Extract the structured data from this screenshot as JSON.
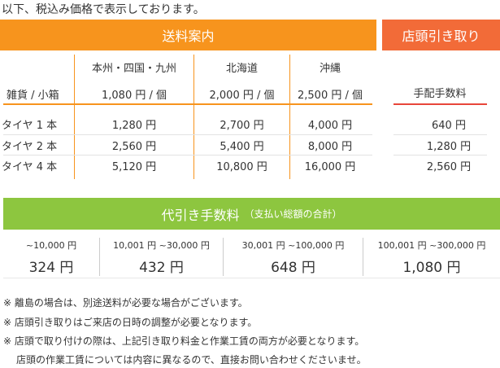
{
  "intro": "以下、税込み価格で表示しております。",
  "shipping": {
    "title": "送料案内",
    "columns": [
      "本州・四国・九州",
      "北海道",
      "沖縄"
    ],
    "rows": [
      {
        "label": "雑貨 / 小箱",
        "values": [
          "1,080 円 / 個",
          "2,000 円 / 個",
          "2,500 円 / 個"
        ]
      },
      {
        "label": "タイヤ 1 本",
        "values": [
          "1,280 円",
          "2,700 円",
          "4,000 円"
        ]
      },
      {
        "label": "タイヤ 2 本",
        "values": [
          "2,560 円",
          "5,400 円",
          "8,000 円"
        ]
      },
      {
        "label": "タイヤ 4 本",
        "values": [
          "5,120 円",
          "10,800 円",
          "16,000 円"
        ]
      }
    ]
  },
  "pickup": {
    "title": "店頭引き取り",
    "column": "手配手数料",
    "values": [
      "640 円",
      "1,280 円",
      "2,560 円"
    ]
  },
  "cod": {
    "title": "代引き手数料",
    "subtitle": "（支払い総額の合計）",
    "tiers": [
      {
        "range": "~10,000 円",
        "fee": "324 円"
      },
      {
        "range": "10,001 円 ~30,000 円",
        "fee": "432 円"
      },
      {
        "range": "30,001 円 ~100,000 円",
        "fee": "648 円"
      },
      {
        "range": "100,001 円 ~300,000 円",
        "fee": "1,080 円"
      }
    ]
  },
  "notes": [
    "※ 離島の場合は、別途送料が必要な場合がございます。",
    "※ 店頭引き取りはご来店の日時の調整が必要となります。",
    "※ 店頭で取り付けの際は、上記引き取り料金と作業工賃の両方が必要となります。",
    "店頭の作業工賃については内容に異なるので、直接お問い合わせくださいませ。"
  ]
}
